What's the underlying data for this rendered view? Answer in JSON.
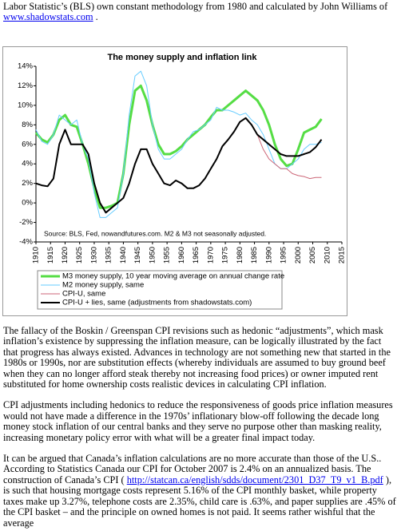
{
  "header": {
    "line": "Labor Statistic’s (BLS) own constant methodology from 1980 and calculated by John Williams of",
    "link": "www.shadowstats.com",
    "after": "."
  },
  "chart_data": {
    "type": "line",
    "title": "The money supply and inflation link",
    "annotation": "Source: BLS, Fed, nowandfutures.com. M2 & M3 not seasonally adjusted.",
    "x": [
      1910,
      1912,
      1914,
      1916,
      1918,
      1920,
      1922,
      1924,
      1926,
      1928,
      1930,
      1932,
      1934,
      1936,
      1938,
      1940,
      1942,
      1944,
      1946,
      1948,
      1950,
      1952,
      1954,
      1956,
      1958,
      1960,
      1962,
      1964,
      1966,
      1968,
      1970,
      1972,
      1974,
      1976,
      1978,
      1980,
      1982,
      1984,
      1986,
      1988,
      1990,
      1992,
      1994,
      1996,
      1998,
      2000,
      2002,
      2004,
      2006,
      2008
    ],
    "series": [
      {
        "name": "M3 money supply, 10 year moving average on annual change rate",
        "color": "#55dd44",
        "width": 3,
        "values": [
          7.2,
          6.5,
          6.2,
          7,
          8.5,
          9,
          8,
          7.8,
          6,
          4,
          1.5,
          -0.5,
          -0.5,
          -0.3,
          0,
          3,
          8,
          11.5,
          12,
          10.5,
          8,
          6,
          5,
          5,
          5.3,
          5.8,
          6.5,
          7,
          7.5,
          8,
          8.8,
          9.5,
          9.5,
          10,
          10.5,
          11,
          11.5,
          11,
          10.5,
          9.5,
          8,
          6,
          4.5,
          3.8,
          4,
          5.5,
          7.2,
          7.5,
          7.8,
          8.6
        ]
      },
      {
        "name": "M2 money supply, same",
        "color": "#66ccff",
        "width": 1,
        "values": [
          7.5,
          6.3,
          6,
          7,
          9,
          8.5,
          8,
          8.5,
          6,
          4.5,
          1,
          -1.5,
          -1.5,
          -1,
          -0.5,
          3,
          9,
          13,
          13.5,
          12,
          8,
          5.5,
          4.5,
          4.5,
          5,
          5.5,
          6.5,
          7.3,
          7.5,
          8,
          8.5,
          9.8,
          9.5,
          9.5,
          9.3,
          9,
          9.2,
          8.5,
          8,
          7,
          5.5,
          4,
          3.5,
          3.5,
          4,
          4.5,
          5.5,
          6,
          6,
          6.2
        ]
      },
      {
        "name": "CPI-U, same",
        "color": "#cc6677",
        "width": 1,
        "values": [
          null,
          null,
          null,
          null,
          null,
          null,
          null,
          null,
          null,
          null,
          null,
          null,
          null,
          null,
          null,
          null,
          null,
          null,
          null,
          null,
          null,
          null,
          null,
          null,
          null,
          null,
          null,
          null,
          null,
          null,
          null,
          null,
          null,
          null,
          null,
          null,
          null,
          8,
          7,
          5.5,
          4.5,
          4,
          3.5,
          3.5,
          3,
          2.8,
          2.7,
          2.5,
          2.6,
          2.6
        ]
      },
      {
        "name": "CPI-U + lies, same (adjustments from shadowstats.com)",
        "color": "#000000",
        "width": 2,
        "values": [
          2,
          1.8,
          1.7,
          2.5,
          6,
          7.5,
          6,
          6,
          6,
          5,
          2,
          0,
          -1,
          -0.5,
          0,
          0.5,
          2,
          4,
          5.5,
          5.5,
          4,
          3,
          2,
          1.8,
          2.3,
          2,
          1.5,
          1.5,
          1.8,
          2.5,
          3.5,
          4.5,
          5.8,
          6.5,
          7.3,
          8.3,
          8.7,
          8,
          7,
          6.5,
          6,
          5.5,
          5,
          4.8,
          4.8,
          4.8,
          5,
          5.2,
          5.7,
          6.5
        ]
      }
    ],
    "xlim": [
      1910,
      2015
    ],
    "xticks": [
      1910,
      1915,
      1920,
      1925,
      1930,
      1935,
      1940,
      1945,
      1950,
      1955,
      1960,
      1965,
      1970,
      1975,
      1980,
      1985,
      1990,
      1995,
      2000,
      2005,
      2010,
      2015
    ],
    "ylim": [
      -4,
      14
    ],
    "yticks": [
      {
        "value": -4,
        "label": "-4%"
      },
      {
        "value": -2,
        "label": "-2%"
      },
      {
        "value": 0,
        "label": "0%"
      },
      {
        "value": 2,
        "label": "2%"
      },
      {
        "value": 4,
        "label": "4%"
      },
      {
        "value": 6,
        "label": "6%"
      },
      {
        "value": 8,
        "label": "8%"
      },
      {
        "value": 10,
        "label": "10%"
      },
      {
        "value": 12,
        "label": "12%"
      },
      {
        "value": 14,
        "label": "14%"
      }
    ],
    "grid": false
  },
  "paragraphs": [
    {
      "text": "The fallacy of the Boskin / Greenspan CPI revisions such as hedonic “adjustments”, which mask inflation’s existence by suppressing the inflation measure, can be logically illustrated by the fact that progress has always existed.  Advances in technology are not something new that started in the 1980s or 1990s, nor are substitution effects (whereby individuals are assumed to buy ground beef when they can no longer afford steak thereby not increasing food prices) or owner imputed rent substituted for home ownership costs realistic devices in calculating CPI inflation."
    },
    {
      "text": "CPI adjustments including hedonics to reduce the responsiveness of goods price inflation measures would not have made a difference in the 1970s’ inflationary blow-off following the decade long money stock inflation of our central banks and they serve no purpose other than masking reality, increasing monetary policy error with what will be a greater final impact today."
    },
    {
      "text": "It can be argued that Canada’s inflation calculations are no more accurate than those of the U.S.. According to Statistics Canada our CPI for October 2007 is 2.4% on an annualized basis.  The construction of Canada’s CPI (",
      "link": "http://statcan.ca/english/sdds/document/2301_D37_T9_v1_B.pdf",
      "after": "), is such that housing mortgage costs represent 5.16% of the CPI monthly basket, while property taxes make up 3.27%, telephone costs are 2.35%, child care is .63%, and paper supplies are .45% of the CPI basket – and the principle on owned homes is not paid.  It seems rather wishful that the average"
    }
  ]
}
